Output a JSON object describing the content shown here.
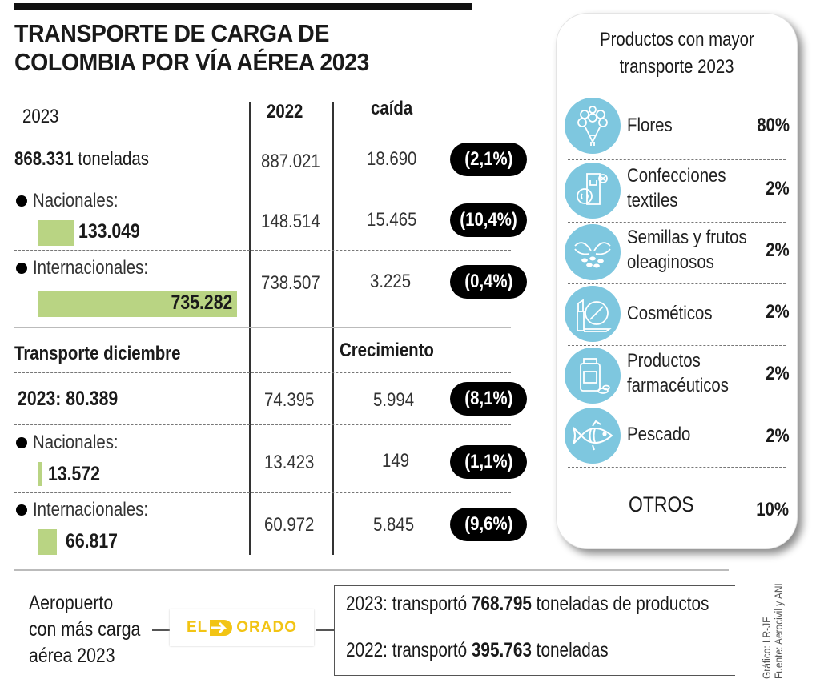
{
  "title": {
    "line1": "TRANSPORTE DE CARGA DE",
    "line2": "COLOMBIA POR VÍA AÉREA 2023"
  },
  "annual": {
    "headers": {
      "col2023": "2023",
      "col2022": "2022",
      "change": "caída"
    },
    "total": {
      "value_bold": "868.331",
      "unit": "toneladas",
      "v2022": "887.021",
      "diff": "18.690",
      "pct": "(2,1%)"
    },
    "nacionales": {
      "label": "Nacionales:",
      "value": "133.049",
      "v2022": "148.514",
      "diff": "15.465",
      "pct": "(10,4%)",
      "share": 0.181
    },
    "internacionales": {
      "label": "Internacionales:",
      "value": "735.282",
      "v2022": "738.507",
      "diff": "3.225",
      "pct": "(0,4%)",
      "share": 1.0
    }
  },
  "december": {
    "headers": {
      "section": "Transporte diciembre",
      "change": "Crecimiento"
    },
    "total": {
      "value": "2023: 80.389",
      "v2022": "74.395",
      "diff": "5.994",
      "pct": "(8,1%)"
    },
    "nacionales": {
      "label": "Nacionales:",
      "value": "13.572",
      "v2022": "13.423",
      "diff": "149",
      "pct": "(1,1%)",
      "share": 0.018
    },
    "internacionales": {
      "label": "Internacionales:",
      "value": "66.817",
      "v2022": "60.972",
      "diff": "5.845",
      "pct": "(9,6%)",
      "share": 0.091
    }
  },
  "products": {
    "title_line1": "Productos con mayor",
    "title_line2": "transporte 2023",
    "icon_color": "#7ec7df",
    "items": [
      {
        "icon": "flowers-icon",
        "name_line1": "Flores",
        "name_line2": "",
        "pct": "80%"
      },
      {
        "icon": "textile-icon",
        "name_line1": "Confecciones",
        "name_line2": "textiles",
        "pct": "2%"
      },
      {
        "icon": "seeds-icon",
        "name_line1": "Semillas y frutos",
        "name_line2": "oleaginosos",
        "pct": "2%"
      },
      {
        "icon": "cosmetics-icon",
        "name_line1": "Cosméticos",
        "name_line2": "",
        "pct": "2%"
      },
      {
        "icon": "pharma-icon",
        "name_line1": "Productos",
        "name_line2": "farmacéuticos",
        "pct": "2%"
      },
      {
        "icon": "fish-icon",
        "name_line1": "Pescado",
        "name_line2": "",
        "pct": "2%"
      }
    ],
    "others": {
      "name": "OTROS",
      "pct": "10%"
    }
  },
  "airport": {
    "label_line1": "Aeropuerto",
    "label_line2": "con más carga",
    "label_line3": "aérea 2023",
    "logo_text_left": "EL",
    "logo_text_right": "ORADO",
    "logo_color": "#f2c414",
    "line2023": {
      "prefix": "2023:",
      "verb": "transportó",
      "value": "768.795",
      "suffix": "toneladas de productos"
    },
    "line2022": {
      "prefix": "2022:",
      "verb": "transportó",
      "value": "395.763",
      "suffix": "toneladas"
    }
  },
  "credits": {
    "grafico": "Gráfico: LR-JF",
    "fuente": "Fuente: Aerocivil y ANI"
  },
  "colors": {
    "bar_green": "#b9d483",
    "pill_bg": "#000000"
  }
}
